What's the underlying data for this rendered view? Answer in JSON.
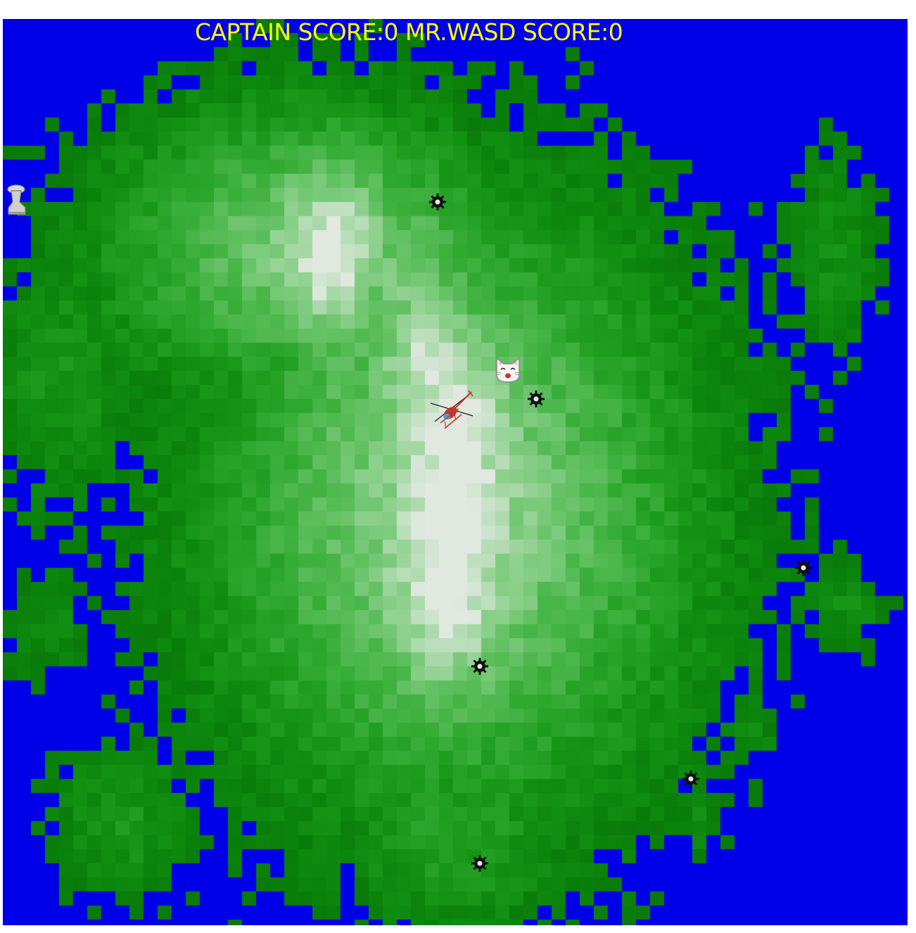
{
  "hud": {
    "score_text": "CAPTAIN SCORE:0 MR.WASD SCORE:0",
    "color": "#ffff00"
  },
  "colors": {
    "water": "#0000e8",
    "lowland": "#0a7a0a",
    "highland": "#e0e8e0"
  },
  "sprites": {
    "player_captain": "helicopter-icon",
    "player_wasd": "cat-face-icon",
    "pickup": "boot-icon",
    "hazard": "mine-icon"
  },
  "mine_count": 6
}
